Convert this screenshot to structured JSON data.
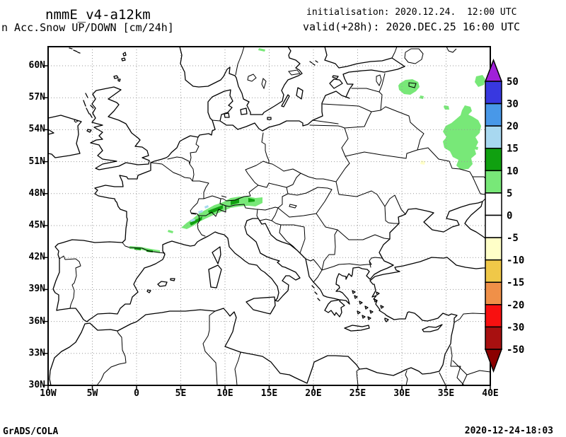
{
  "header": {
    "model": "nmmE_v4-a12km",
    "product": "n Acc.Snow UP/DOWN [cm/24h]",
    "init_label": "initialisation: 2020.12.24.  12:00 UTC",
    "valid_label": "valid(+28h): 2020.DEC.25 16:00 UTC"
  },
  "footer": {
    "credit": "GrADS/COLA",
    "timestamp": "2020-12-24-18:03"
  },
  "axes": {
    "lat_ticks": [
      "60N",
      "57N",
      "54N",
      "51N",
      "48N",
      "45N",
      "42N",
      "39N",
      "36N",
      "33N",
      "30N"
    ],
    "lon_ticks": [
      "10W",
      "5W",
      "0",
      "5E",
      "10E",
      "15E",
      "20E",
      "25E",
      "30E",
      "35E",
      "40E"
    ]
  },
  "colorbar": {
    "labels": [
      "50",
      "30",
      "20",
      "15",
      "10",
      "5",
      "0",
      "-5",
      "-10",
      "-15",
      "-20",
      "-30",
      "-50"
    ],
    "colors_top_to_bottom": [
      "#a020d8",
      "#3838e0",
      "#4898e8",
      "#a8d8f0",
      "#10a010",
      "#78e878",
      "#ffffff",
      "#ffffff",
      "#ffffc8",
      "#f0c848",
      "#f09048",
      "#f81010",
      "#a81010",
      "#8b0000"
    ]
  },
  "chart_data": {
    "type": "filled_contour_map",
    "title": "nmmE_v4-a12km",
    "subtitle": "n Acc.Snow UP/DOWN [cm/24h]",
    "unit": "cm/24h",
    "initialisation": "2020.12.24. 12:00 UTC",
    "valid": "(+28h) 2020.DEC.25 16:00 UTC",
    "lon_range": [
      "10W",
      "40E"
    ],
    "lat_range": [
      "30N",
      "62N"
    ],
    "grid": {
      "on": true,
      "lon_step_deg": 5,
      "lat_step_deg": 3,
      "style": "dotted"
    },
    "legend_position": "right vertical colorbar with end arrows",
    "levels": [
      -50,
      -30,
      -20,
      -15,
      -10,
      -5,
      0,
      5,
      10,
      15,
      20,
      30,
      50
    ],
    "palette_low_to_high": [
      "#8b0000",
      "#a81010",
      "#f81010",
      "#f09048",
      "#f0c848",
      "#ffffc8",
      "#ffffff",
      "#ffffff",
      "#78e878",
      "#10a010",
      "#a8d8f0",
      "#4898e8",
      "#3838e0",
      "#a020d8"
    ],
    "shaded_regions": [
      {
        "area": "Alpine arc, Switzerland-Austria-N Italy (~5.5E-15.5E, 45.5N-47.5N)",
        "value_cm": "5-15, small cores 15-20"
      },
      {
        "area": "Pyrenees crest (~0E-3E, 42.5N)",
        "value_cm": "5-15"
      },
      {
        "area": "NW Russia near Lake Ilmen (~30E-32E, 57.5N-58.5N)",
        "value_cm": "5-10"
      },
      {
        "area": "W Russia (~35E-39E, 50N-56.5N)",
        "value_cm": "5-10"
      },
      {
        "area": "NE corner near 38E-39E, 58N-59N",
        "value_cm": "5-10"
      },
      {
        "area": "spot ~32E, 51N",
        "value_cm": "-10 to -5"
      }
    ]
  }
}
